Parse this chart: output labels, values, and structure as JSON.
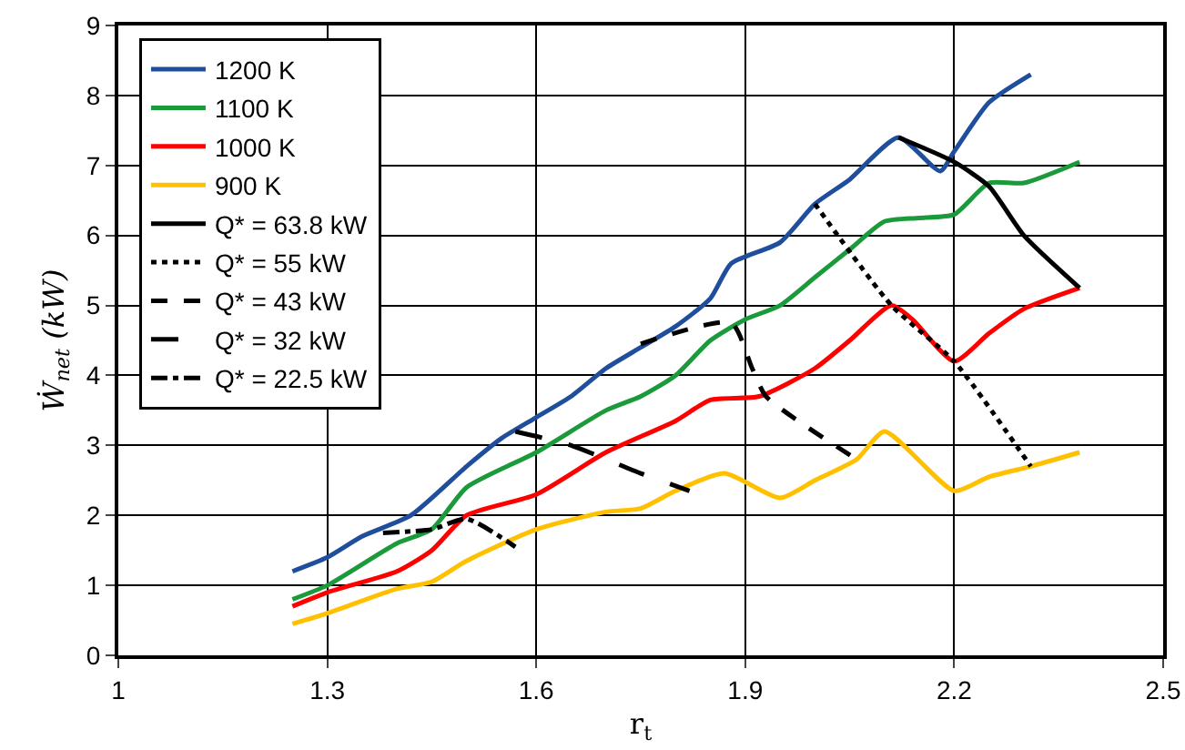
{
  "chart_data": {
    "type": "line",
    "xlabel": "r$_{t}$",
    "ylabel": "Ẇ$_{net}$ (kW)",
    "xlim": [
      1,
      2.5
    ],
    "xticks": [
      1,
      1.3,
      1.6,
      1.9,
      2.2,
      2.5
    ],
    "ylim": [
      0,
      9
    ],
    "yticks": [
      0,
      1,
      2,
      3,
      4,
      5,
      6,
      7,
      8,
      9
    ],
    "grid": true,
    "legend": "top left",
    "marker": "none",
    "series": [
      {
        "name": "1200 K",
        "color": "#1f4e9c",
        "line_style": "solid",
        "x": [
          1.25,
          1.3,
          1.35,
          1.42,
          1.5,
          1.55,
          1.6,
          1.65,
          1.7,
          1.75,
          1.8,
          1.85,
          1.88,
          1.95,
          2.0,
          2.05,
          2.12,
          2.18,
          2.2,
          2.25,
          2.31
        ],
        "values": [
          1.2,
          1.4,
          1.7,
          2.0,
          2.7,
          3.1,
          3.4,
          3.7,
          4.1,
          4.4,
          4.7,
          5.1,
          5.6,
          5.9,
          6.45,
          6.8,
          7.4,
          6.92,
          7.2,
          7.9,
          8.3
        ]
      },
      {
        "name": "1100 K",
        "color": "#1a9a3a",
        "line_style": "solid",
        "x": [
          1.25,
          1.3,
          1.4,
          1.45,
          1.5,
          1.6,
          1.7,
          1.75,
          1.8,
          1.85,
          1.9,
          1.95,
          2.0,
          2.05,
          2.1,
          2.15,
          2.2,
          2.25,
          2.3,
          2.38
        ],
        "values": [
          0.8,
          1.0,
          1.6,
          1.8,
          2.4,
          2.9,
          3.5,
          3.7,
          4.0,
          4.5,
          4.8,
          5.0,
          5.4,
          5.8,
          6.2,
          6.25,
          6.3,
          6.75,
          6.75,
          7.05
        ]
      },
      {
        "name": "1000 K",
        "color": "#ff0000",
        "line_style": "solid",
        "x": [
          1.25,
          1.3,
          1.4,
          1.45,
          1.5,
          1.6,
          1.7,
          1.8,
          1.85,
          1.92,
          2.0,
          2.05,
          2.11,
          2.14,
          2.2,
          2.25,
          2.3,
          2.38
        ],
        "values": [
          0.7,
          0.9,
          1.2,
          1.5,
          2.0,
          2.3,
          2.9,
          3.35,
          3.65,
          3.7,
          4.1,
          4.5,
          5.0,
          4.8,
          4.2,
          4.6,
          4.95,
          5.25
        ]
      },
      {
        "name": "900 K",
        "color": "#ffc000",
        "line_style": "solid",
        "x": [
          1.25,
          1.3,
          1.4,
          1.45,
          1.5,
          1.6,
          1.7,
          1.75,
          1.8,
          1.87,
          1.95,
          2.0,
          2.06,
          2.1,
          2.2,
          2.25,
          2.31,
          2.38
        ],
        "values": [
          0.45,
          0.6,
          0.95,
          1.05,
          1.35,
          1.8,
          2.05,
          2.1,
          2.35,
          2.6,
          2.25,
          2.5,
          2.8,
          3.2,
          2.35,
          2.55,
          2.7,
          2.9
        ]
      },
      {
        "name": "Q* = 63.8 kW",
        "color": "#000000",
        "line_style": "solid",
        "x": [
          2.12,
          2.2,
          2.25,
          2.3,
          2.38
        ],
        "values": [
          7.4,
          7.05,
          6.7,
          6.0,
          5.25
        ]
      },
      {
        "name": "Q* = 55 kW",
        "color": "#000000",
        "line_style": "dotted",
        "x": [
          2.0,
          2.11,
          2.2,
          2.31
        ],
        "values": [
          6.45,
          5.0,
          4.2,
          2.7
        ]
      },
      {
        "name": "Q* = 43 kW",
        "color": "#000000",
        "line_style": "dashed",
        "x": [
          1.75,
          1.88,
          1.91,
          1.93,
          2.06
        ],
        "values": [
          4.45,
          4.75,
          4.1,
          3.7,
          2.8
        ]
      },
      {
        "name": "Q* = 32 kW",
        "color": "#000000",
        "line_style": "longdash",
        "x": [
          1.57,
          1.65,
          1.75,
          1.82
        ],
        "values": [
          3.2,
          3.0,
          2.6,
          2.35
        ]
      },
      {
        "name": "Q* = 22.5 kW",
        "color": "#000000",
        "line_style": "dashdot",
        "x": [
          1.38,
          1.45,
          1.5,
          1.57
        ],
        "values": [
          1.75,
          1.8,
          1.95,
          1.55
        ]
      }
    ]
  }
}
